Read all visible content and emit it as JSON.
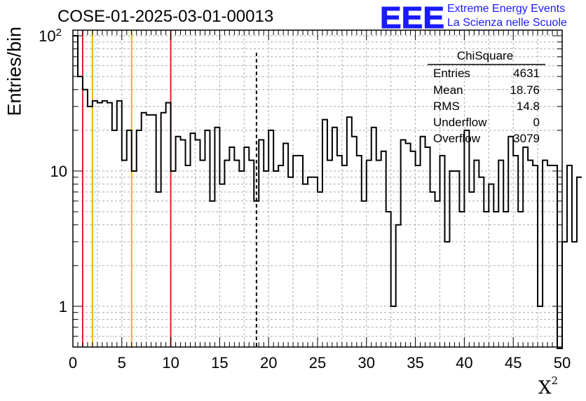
{
  "header": {
    "title": "COSE-01-2025-03-01-00013"
  },
  "logo": {
    "text": "EEE",
    "line1": "Extreme Energy Events",
    "line2": "La Scienza nelle Scuole",
    "color": "#1a1aff"
  },
  "stats": {
    "title": "ChiSquare",
    "rows": [
      {
        "label": "Entries",
        "value": "4631"
      },
      {
        "label": "Mean",
        "value": "18.76"
      },
      {
        "label": "RMS",
        "value": "14.8"
      },
      {
        "label": "Underflow",
        "value": "0"
      },
      {
        "label": "Overflow",
        "value": "3079"
      }
    ]
  },
  "chart_data": {
    "type": "bar",
    "histogram": true,
    "ylabel": "Entries/bin",
    "xlabel_base": "X",
    "xlabel_sup": "2",
    "xlim": [
      0,
      50
    ],
    "ylim": [
      0.5,
      110
    ],
    "y_log": true,
    "grid": true,
    "bin_width": 0.5,
    "x_ticks": [
      "0",
      "5",
      "10",
      "15",
      "20",
      "25",
      "30",
      "35",
      "40",
      "45",
      "50"
    ],
    "y_ticks": [
      {
        "value": 1,
        "label": "1"
      },
      {
        "value": 10,
        "label": "10"
      },
      {
        "value": 100,
        "label": "10",
        "sup": "2"
      }
    ],
    "values": [
      100,
      50,
      40,
      30,
      33,
      32,
      33,
      32,
      20,
      33,
      12,
      20,
      10,
      20,
      27,
      26,
      26,
      7,
      27,
      32,
      10,
      18,
      17,
      11,
      19,
      17,
      12,
      20,
      6,
      21,
      8,
      12,
      15,
      12,
      10,
      15,
      12,
      6,
      17,
      10,
      20,
      10,
      11,
      16,
      9,
      13,
      13,
      8,
      9,
      9,
      7,
      24,
      12,
      21,
      13,
      11,
      25,
      18,
      13,
      6,
      12,
      21,
      12,
      14,
      5,
      1,
      4,
      17,
      16,
      14,
      11,
      18,
      15,
      7,
      6,
      13,
      3,
      10,
      10,
      5,
      20,
      7,
      12,
      9,
      5,
      8,
      5,
      12,
      5,
      18,
      13,
      5,
      15,
      12,
      11,
      1,
      12,
      11,
      11,
      0,
      3,
      11,
      3,
      9
    ],
    "markers": [
      {
        "x": 1,
        "color": "#dd2222",
        "style": "solid"
      },
      {
        "x": 2,
        "color": "#f0b400",
        "style": "solid"
      },
      {
        "x": 6,
        "color": "#f0b400",
        "style": "solid"
      },
      {
        "x": 10,
        "color": "#dd2222",
        "style": "solid"
      },
      {
        "x": 18.76,
        "color": "#000000",
        "style": "dashed"
      }
    ]
  }
}
